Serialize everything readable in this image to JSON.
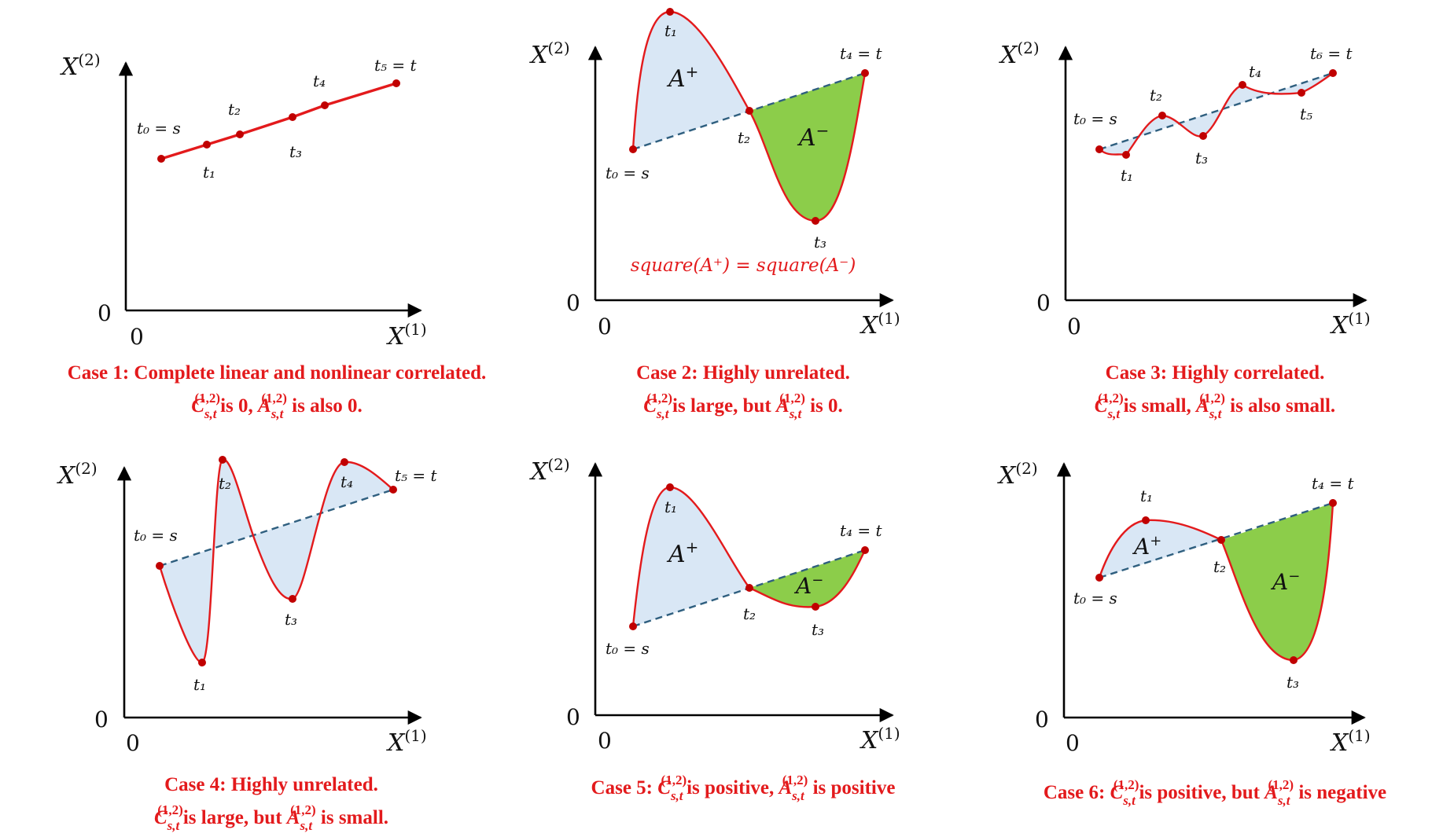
{
  "colors": {
    "path": "#e31a1c",
    "dashed": "#2f5f7f",
    "area_positive": "#d9e7f5",
    "area_negative": "#8ccd4a",
    "caption": "#e31a1c"
  },
  "axis_labels": {
    "y": "X",
    "y_sup": "(2)",
    "x": "X",
    "x_sup": "(1)",
    "origin": "0"
  },
  "area_labels": {
    "positive": "A",
    "positive_sup": "+",
    "negative": "A",
    "negative_sup": "−"
  },
  "square_eq": "square(A⁺) = square(A⁻)",
  "panels": [
    {
      "id": "case1",
      "points": [
        "t₀ = s",
        "t₁",
        "t₂",
        "t₃",
        "t₄",
        "t₅ = t"
      ],
      "caption_line1": "Case 1: Complete linear and nonlinear correlated.",
      "caption_line2": {
        "c": "C",
        "sub": "s,t",
        "sup": "(1,2)",
        "mid": "is 0, ",
        "a": "A",
        "end": " is also 0."
      }
    },
    {
      "id": "case2",
      "points": [
        "t₀ = s",
        "t₁",
        "t₂",
        "t₃",
        "t₄ = t"
      ],
      "caption_line1": "Case 2: Highly unrelated.",
      "caption_line2": {
        "c": "C",
        "sub": "s,t",
        "sup": "(1,2)",
        "mid": "is large, but ",
        "a": "A",
        "end": " is 0."
      }
    },
    {
      "id": "case3",
      "points": [
        "t₀ = s",
        "t₁",
        "t₂",
        "t₃",
        "t₄",
        "t₅",
        "t₆ = t"
      ],
      "caption_line1": "Case 3: Highly correlated.",
      "caption_line2": {
        "c": "C",
        "sub": "s,t",
        "sup": "(1,2)",
        "mid": "is small, ",
        "a": "A",
        "end": " is also small."
      }
    },
    {
      "id": "case4",
      "points": [
        "t₀ = s",
        "t₁",
        "t₂",
        "t₃",
        "t₄",
        "t₅ = t"
      ],
      "caption_line1": "Case 4: Highly unrelated.",
      "caption_line2": {
        "c": "C",
        "sub": "s,t",
        "sup": "(1,2)",
        "mid": "is large, but ",
        "a": "A",
        "end": " is small."
      }
    },
    {
      "id": "case5",
      "points": [
        "t₀ = s",
        "t₁",
        "t₂",
        "t₃",
        "t₄ = t"
      ],
      "caption_line1": {
        "lead": "Case 5: ",
        "c": "C",
        "sub": "s,t",
        "sup": "(1,2)",
        "mid": "is positive, ",
        "a": "A",
        "end": " is positive"
      }
    },
    {
      "id": "case6",
      "points": [
        "t₀ = s",
        "t₁",
        "t₂",
        "t₃",
        "t₄ = t"
      ],
      "caption_line1": {
        "lead": "Case 6: ",
        "c": "C",
        "sub": "s,t",
        "sup": "(1,2)",
        "mid": "is positive, but ",
        "a": "A",
        "end": " is negative"
      }
    }
  ]
}
